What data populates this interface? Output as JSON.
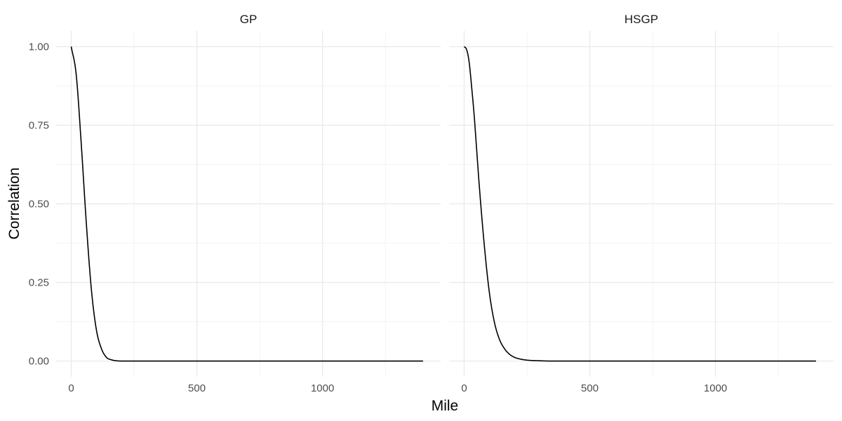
{
  "chart_data": {
    "type": "line",
    "xlabel": "Mile",
    "ylabel": "Correlation",
    "xlim": [
      -60,
      1470
    ],
    "ylim": [
      -0.05,
      1.05
    ],
    "x_ticks": [
      0,
      500,
      1000
    ],
    "x_minor_ticks": [
      250,
      750,
      1250
    ],
    "y_ticks": [
      0.0,
      0.25,
      0.5,
      0.75,
      1.0
    ],
    "y_tick_labels": [
      "0.00",
      "0.25",
      "0.50",
      "0.75",
      "1.00"
    ],
    "y_minor_ticks": [
      0.125,
      0.375,
      0.625,
      0.875
    ],
    "grid": true,
    "line_color": "#000000",
    "panels": [
      {
        "title": "GP",
        "x": [
          0,
          20,
          40,
          60,
          80,
          100,
          120,
          140,
          160,
          180,
          200,
          250,
          300,
          400,
          600,
          800,
          1000,
          1200,
          1400
        ],
        "y": [
          1.0,
          0.91,
          0.69,
          0.44,
          0.23,
          0.1,
          0.04,
          0.012,
          0.004,
          0.001,
          0.0,
          0.0,
          0.0,
          0.0,
          0.0,
          0.0,
          0.0,
          0.0,
          0.0
        ]
      },
      {
        "title": "HSGP",
        "x": [
          0,
          10,
          20,
          30,
          40,
          50,
          60,
          80,
          100,
          120,
          140,
          160,
          180,
          200,
          220,
          250,
          300,
          350,
          400,
          600,
          800,
          1000,
          1200,
          1400
        ],
        "y": [
          1.0,
          0.99,
          0.95,
          0.87,
          0.78,
          0.67,
          0.56,
          0.37,
          0.22,
          0.125,
          0.07,
          0.04,
          0.022,
          0.012,
          0.007,
          0.003,
          0.001,
          0.0,
          0.0,
          0.0,
          0.0,
          0.0,
          0.0,
          0.0
        ]
      }
    ]
  }
}
